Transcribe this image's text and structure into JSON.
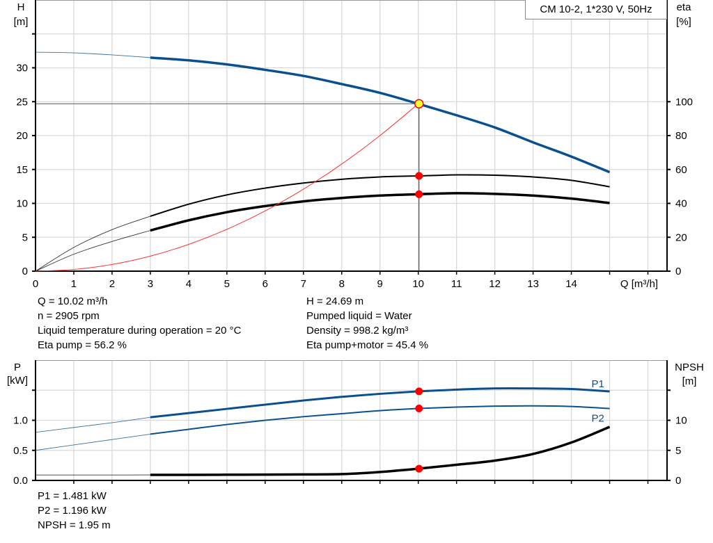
{
  "chart_data": [
    {
      "type": "line",
      "title": "CM 10-2, 1*230 V, 50Hz",
      "xlabel": "Q [m³/h]",
      "ylabel": "H\n[m]",
      "ylabel_parts": [
        "H",
        "[m]"
      ],
      "y2label_parts": [
        "eta",
        "[%]"
      ],
      "xlim": [
        0,
        16.5
      ],
      "ylim": [
        0,
        40
      ],
      "y2lim": [
        0,
        160
      ],
      "x_ticks": [
        0,
        1,
        2,
        3,
        4,
        5,
        6,
        7,
        8,
        9,
        10,
        11,
        12,
        13,
        14
      ],
      "y_ticks": [
        0,
        5,
        10,
        15,
        20,
        25,
        30
      ],
      "y2_ticks": [
        0,
        20,
        40,
        60,
        80,
        100
      ],
      "grid": true,
      "recommended_range_start": 3,
      "series": [
        {
          "key": "H",
          "axis": "left",
          "color": "#0a4f8f",
          "x": [
            0,
            1,
            2,
            3,
            4,
            5,
            6,
            7,
            8,
            9,
            10,
            11,
            12,
            13,
            14,
            15
          ],
          "y": [
            32.3,
            32.2,
            31.9,
            31.5,
            31.1,
            30.5,
            29.7,
            28.8,
            27.6,
            26.3,
            24.69,
            23.0,
            21.2,
            19.0,
            16.9,
            14.6
          ]
        },
        {
          "key": "eta_pump",
          "axis": "right",
          "color": "#000000",
          "x": [
            0,
            1,
            2,
            3,
            4,
            5,
            6,
            7,
            8,
            9,
            10,
            11,
            12,
            13,
            14,
            15
          ],
          "y": [
            0,
            14,
            24.5,
            32.4,
            39.5,
            45,
            49,
            52,
            54.2,
            55.6,
            56.2,
            56.8,
            56.6,
            55.6,
            53.6,
            49.8
          ]
        },
        {
          "key": "eta_pump_motor",
          "axis": "right",
          "color": "#000000",
          "x": [
            0,
            1,
            2,
            3,
            4,
            5,
            6,
            7,
            8,
            9,
            10,
            11,
            12,
            13,
            14,
            15
          ],
          "y": [
            0,
            10,
            17.5,
            24,
            30,
            34.8,
            38.4,
            41.2,
            43.2,
            44.6,
            45.4,
            46,
            45.6,
            44.6,
            42.8,
            40.2
          ]
        },
        {
          "key": "system_curve",
          "axis": "left",
          "color": "#ff3030",
          "x": [
            0,
            1,
            2,
            3,
            4,
            5,
            6,
            7,
            8,
            9,
            10
          ],
          "y": [
            0,
            0.25,
            0.99,
            2.22,
            3.95,
            6.17,
            8.89,
            12.1,
            15.8,
            20.0,
            24.69
          ]
        }
      ],
      "operating_point": {
        "Q": 10.02,
        "H": 24.69,
        "eta_pump": 56.2,
        "eta_pump_motor": 45.4
      }
    },
    {
      "type": "line",
      "ylabel_parts": [
        "P",
        "[kW]"
      ],
      "y2label_parts": [
        "NPSH",
        "[m]"
      ],
      "xlim": [
        0,
        16.5
      ],
      "ylim": [
        0,
        2.0
      ],
      "y2lim": [
        0,
        20
      ],
      "y_ticks": [
        0.0,
        0.5,
        1.0
      ],
      "y_tick_labels": [
        "0.0",
        "0.5",
        "1.0"
      ],
      "y2_ticks": [
        0,
        5,
        10
      ],
      "grid": true,
      "recommended_range_start": 3,
      "series": [
        {
          "key": "P1",
          "name": "P1",
          "axis": "left",
          "color": "#0a4f8f",
          "x": [
            0,
            1,
            2,
            3,
            4,
            5,
            6,
            7,
            8,
            9,
            10,
            11,
            12,
            13,
            14,
            15
          ],
          "y": [
            0.8,
            0.88,
            0.96,
            1.05,
            1.12,
            1.19,
            1.26,
            1.33,
            1.39,
            1.44,
            1.481,
            1.51,
            1.53,
            1.53,
            1.52,
            1.48
          ]
        },
        {
          "key": "P2",
          "name": "P2",
          "axis": "left",
          "color": "#0a4f8f",
          "x": [
            0,
            1,
            2,
            3,
            4,
            5,
            6,
            7,
            8,
            9,
            10,
            11,
            12,
            13,
            14,
            15
          ],
          "y": [
            0.5,
            0.59,
            0.68,
            0.77,
            0.85,
            0.93,
            1.0,
            1.06,
            1.11,
            1.16,
            1.196,
            1.22,
            1.235,
            1.24,
            1.23,
            1.195
          ]
        },
        {
          "key": "NPSH",
          "axis": "right",
          "color": "#000000",
          "x": [
            0,
            1,
            2,
            3,
            4,
            5,
            6,
            7,
            8,
            9,
            10,
            11,
            12,
            13,
            14,
            15
          ],
          "y": [
            0.9,
            0.9,
            0.9,
            0.92,
            0.93,
            0.95,
            0.97,
            1.0,
            1.05,
            1.4,
            1.95,
            2.6,
            3.3,
            4.4,
            6.3,
            8.9
          ]
        }
      ],
      "operating_point": {
        "Q": 10.02,
        "P1": 1.481,
        "P2": 1.196,
        "NPSH": 1.95
      }
    }
  ],
  "results": {
    "left": [
      "Q = 10.02 m³/h",
      "n = 2905 rpm",
      "Liquid temperature during operation = 20 °C",
      "Eta pump = 56.2 %"
    ],
    "right": [
      "H = 24.69 m",
      "Pumped liquid = Water",
      "Density = 998.2 kg/m³",
      "Eta pump+motor = 45.4 %"
    ],
    "bottom": [
      "P1 = 1.481 kW",
      "P2 = 1.196 kW",
      "NPSH = 1.95 m"
    ]
  },
  "colors": {
    "pump_blue": "#0a4f8f",
    "grid": "#d9d9d9",
    "operating_point_fill": "#ffff33",
    "marker": "#ff0000"
  }
}
